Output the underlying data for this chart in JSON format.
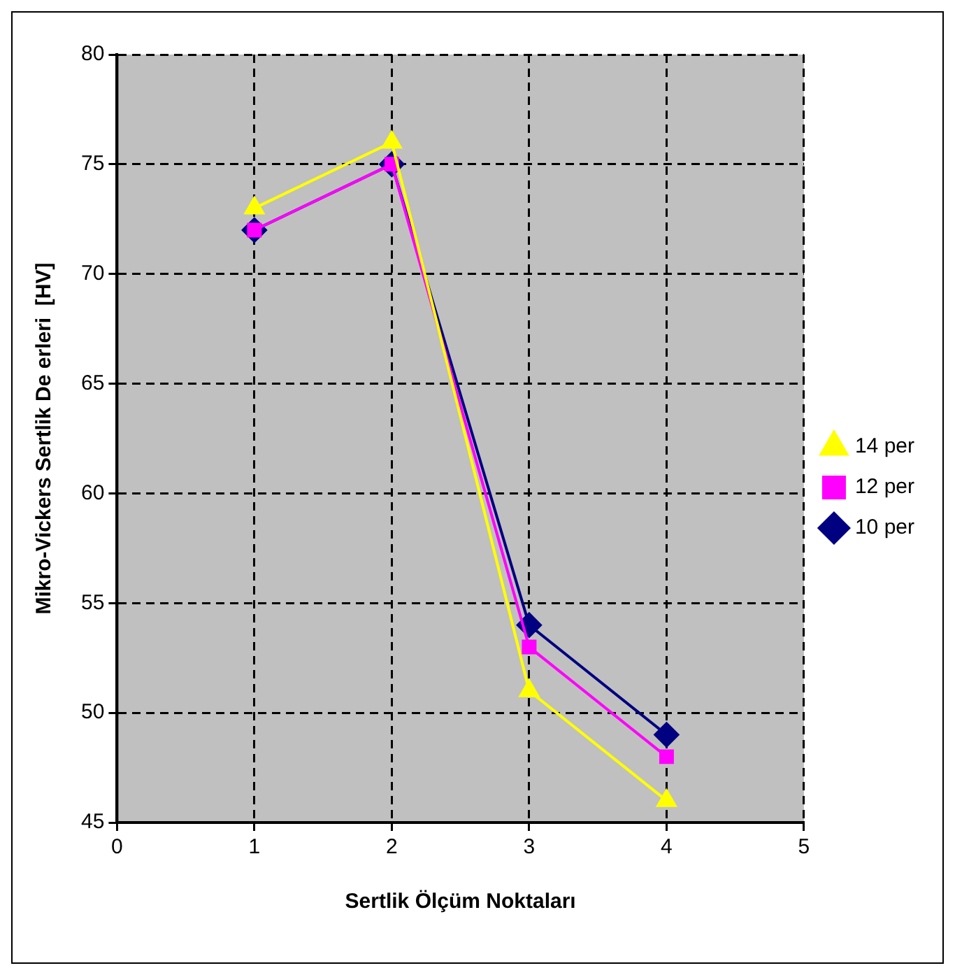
{
  "chart_data": {
    "type": "line",
    "xlabel": "Sertlik Ölçüm Noktaları",
    "ylabel": "Mikro-Vickers Sertlik De erleri  [HV]",
    "x": [
      1,
      2,
      3,
      4
    ],
    "series": [
      {
        "name": "10 per",
        "color": "#000080",
        "marker": "diamond",
        "values": [
          72,
          75,
          54,
          49
        ]
      },
      {
        "name": "12 per",
        "color": "#ff00ff",
        "marker": "square",
        "values": [
          72,
          75,
          53,
          48
        ]
      },
      {
        "name": "14 per",
        "color": "#ffff00",
        "marker": "triangle",
        "values": [
          73,
          76,
          51,
          46
        ]
      }
    ],
    "xlim": [
      0,
      5
    ],
    "xticks": [
      0,
      1,
      2,
      3,
      4,
      5
    ],
    "ylim": [
      45,
      80
    ],
    "yticks": [
      45,
      50,
      55,
      60,
      65,
      70,
      75,
      80
    ],
    "grid": true,
    "legend": "right",
    "line_style": "solid"
  }
}
